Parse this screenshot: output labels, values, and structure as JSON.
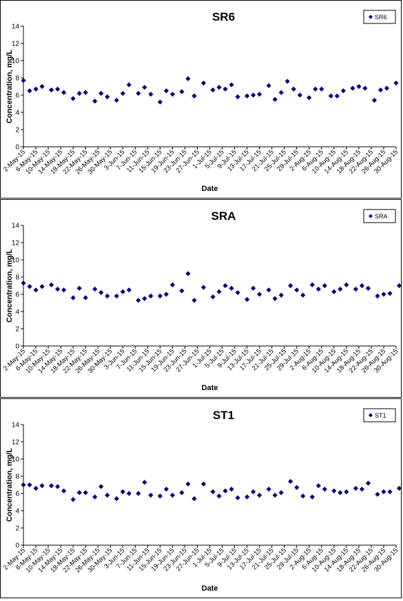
{
  "chart_data": [
    {
      "type": "scatter",
      "title": "SR6",
      "xlabel": "Date",
      "ylabel": "Concentration, mg/L",
      "ylim": [
        0,
        14
      ],
      "yticks": [
        0,
        2,
        4,
        6,
        8,
        10,
        12,
        14
      ],
      "xlim": [
        "2-May-15",
        "30-Aug-15"
      ],
      "xticks": [
        "2-May-15",
        "6-May-15",
        "10-May-15",
        "14-May-15",
        "18-May-15",
        "22-May-15",
        "26-May-15",
        "30-May-15",
        "3-Jun-15",
        "7-Jun-15",
        "11-Jun-15",
        "15-Jun-15",
        "19-Jun-15",
        "23-Jun-15",
        "27-Jun-15",
        "1-Jul-15",
        "5-Jul-15",
        "9-Jul-15",
        "13-Jul-15",
        "17-Jul-15",
        "21-Jul-15",
        "25-Jul-15",
        "29-Jul-15",
        "2-Aug-15",
        "6-Aug-15",
        "10-Aug-15",
        "14-Aug-15",
        "18-Aug-15",
        "22-Aug-15",
        "26-Aug-15",
        "30-Aug-15"
      ],
      "grid": false,
      "legend": "top-right",
      "marker_color": "#000080",
      "series": [
        {
          "name": "SR6",
          "x": [
            "2-May-15",
            "4-May-15",
            "6-May-15",
            "8-May-15",
            "11-May-15",
            "13-May-15",
            "15-May-15",
            "18-May-15",
            "20-May-15",
            "22-May-15",
            "25-May-15",
            "27-May-15",
            "29-May-15",
            "1-Jun-15",
            "3-Jun-15",
            "5-Jun-15",
            "8-Jun-15",
            "10-Jun-15",
            "12-Jun-15",
            "15-Jun-15",
            "17-Jun-15",
            "19-Jun-15",
            "22-Jun-15",
            "24-Jun-15",
            "26-Jun-15",
            "29-Jun-15",
            "2-Jul-15",
            "4-Jul-15",
            "6-Jul-15",
            "8-Jul-15",
            "10-Jul-15",
            "13-Jul-15",
            "15-Jul-15",
            "17-Jul-15",
            "20-Jul-15",
            "22-Jul-15",
            "24-Jul-15",
            "26-Jul-15",
            "28-Jul-15",
            "30-Jul-15",
            "2-Aug-15",
            "4-Aug-15",
            "6-Aug-15",
            "9-Aug-15",
            "11-Aug-15",
            "13-Aug-15",
            "16-Aug-15",
            "18-Aug-15",
            "20-Aug-15",
            "23-Aug-15",
            "25-Aug-15",
            "27-Aug-15",
            "30-Aug-15"
          ],
          "y": [
            7.7,
            6.5,
            6.7,
            7.0,
            6.6,
            6.7,
            6.3,
            5.6,
            6.2,
            6.3,
            5.3,
            6.2,
            5.8,
            5.4,
            6.2,
            7.2,
            6.2,
            6.9,
            6.1,
            5.2,
            6.5,
            6.1,
            6.4,
            7.9,
            5.9,
            7.4,
            6.6,
            6.9,
            6.7,
            7.2,
            5.8,
            5.9,
            6.0,
            6.1,
            7.1,
            5.5,
            6.3,
            7.6,
            6.7,
            6.0,
            5.7,
            6.7,
            6.7,
            5.9,
            5.9,
            6.5,
            6.8,
            7.0,
            6.8,
            5.4,
            6.6,
            6.8,
            7.4
          ]
        }
      ]
    },
    {
      "type": "scatter",
      "title": "SRA",
      "xlabel": "Date",
      "ylabel": "Concentration, mg/L",
      "ylim": [
        0,
        14
      ],
      "yticks": [
        0,
        2,
        4,
        6,
        8,
        10,
        12,
        14
      ],
      "xlim": [
        "2-May-15",
        "30-Aug-15"
      ],
      "xticks": [
        "2-May-15",
        "6-May-15",
        "10-May-15",
        "14-May-15",
        "18-May-15",
        "22-May-15",
        "26-May-15",
        "30-May-15",
        "3-Jun-15",
        "7-Jun-15",
        "11-Jun-15",
        "15-Jun-15",
        "19-Jun-15",
        "23-Jun-15",
        "27-Jun-15",
        "1-Jul-15",
        "5-Jul-15",
        "9-Jul-15",
        "13-Jul-15",
        "17-Jul-15",
        "21-Jul-15",
        "25-Jul-15",
        "29-Jul-15",
        "2-Aug-15",
        "6-Aug-15",
        "10-Aug-15",
        "14-Aug-15",
        "18-Aug-15",
        "22-Aug-15",
        "26-Aug-15",
        "30-Aug-15"
      ],
      "grid": false,
      "legend": "top-right",
      "marker_color": "#000080",
      "series": [
        {
          "name": "SRA",
          "x": [
            "2-May-15",
            "4-May-15",
            "6-May-15",
            "8-May-15",
            "11-May-15",
            "13-May-15",
            "15-May-15",
            "18-May-15",
            "20-May-15",
            "22-May-15",
            "25-May-15",
            "27-May-15",
            "29-May-15",
            "1-Jun-15",
            "3-Jun-15",
            "5-Jun-15",
            "8-Jun-15",
            "10-Jun-15",
            "12-Jun-15",
            "15-Jun-15",
            "17-Jun-15",
            "19-Jun-15",
            "22-Jun-15",
            "24-Jun-15",
            "26-Jun-15",
            "29-Jun-15",
            "2-Jul-15",
            "4-Jul-15",
            "6-Jul-15",
            "8-Jul-15",
            "10-Jul-15",
            "13-Jul-15",
            "15-Jul-15",
            "17-Jul-15",
            "20-Jul-15",
            "22-Jul-15",
            "24-Jul-15",
            "27-Jul-15",
            "29-Jul-15",
            "31-Jul-15",
            "3-Aug-15",
            "5-Aug-15",
            "7-Aug-15",
            "10-Aug-15",
            "12-Aug-15",
            "14-Aug-15",
            "17-Aug-15",
            "19-Aug-15",
            "21-Aug-15",
            "24-Aug-15",
            "26-Aug-15",
            "28-Aug-15",
            "31-Aug-15"
          ],
          "y": [
            7.3,
            6.9,
            6.5,
            6.9,
            7.1,
            6.6,
            6.5,
            5.6,
            6.7,
            5.6,
            6.6,
            6.2,
            5.8,
            5.8,
            6.3,
            6.5,
            5.3,
            5.5,
            5.8,
            5.8,
            6.0,
            7.1,
            6.4,
            8.4,
            5.3,
            6.8,
            5.7,
            6.3,
            7.0,
            6.7,
            6.2,
            5.4,
            6.7,
            6.0,
            6.5,
            5.5,
            5.9,
            7.0,
            6.5,
            5.9,
            7.1,
            6.6,
            7.0,
            6.3,
            6.6,
            7.1,
            6.6,
            7.0,
            6.7,
            5.8,
            6.0,
            6.1,
            7.0
          ]
        }
      ]
    },
    {
      "type": "scatter",
      "title": "ST1",
      "xlabel": "Date",
      "ylabel": "Concentration, mg/L",
      "ylim": [
        0,
        14
      ],
      "yticks": [
        0,
        2,
        4,
        6,
        8,
        10,
        12,
        14
      ],
      "xlim": [
        "2-May-15",
        "30-Aug-15"
      ],
      "xticks": [
        "2-May-15",
        "6-May-15",
        "10-May-15",
        "14-May-15",
        "18-May-15",
        "22-May-15",
        "26-May-15",
        "30-May-15",
        "3-Jun-15",
        "7-Jun-15",
        "11-Jun-15",
        "15-Jun-15",
        "19-Jun-15",
        "23-Jun-15",
        "27-Jun-15",
        "1-Jul-15",
        "5-Jul-15",
        "9-Jul-15",
        "13-Jul-15",
        "17-Jul-15",
        "21-Jul-15",
        "25-Jul-15",
        "29-Jul-15",
        "2-Aug-15",
        "6-Aug-15",
        "10-Aug-15",
        "14-Aug-15",
        "18-Aug-15",
        "22-Aug-15",
        "26-Aug-15",
        "30-Aug-15"
      ],
      "grid": false,
      "legend": "top-right",
      "marker_color": "#000080",
      "series": [
        {
          "name": "ST1",
          "x": [
            "2-May-15",
            "4-May-15",
            "6-May-15",
            "8-May-15",
            "11-May-15",
            "13-May-15",
            "15-May-15",
            "18-May-15",
            "20-May-15",
            "22-May-15",
            "25-May-15",
            "27-May-15",
            "29-May-15",
            "1-Jun-15",
            "3-Jun-15",
            "5-Jun-15",
            "8-Jun-15",
            "10-Jun-15",
            "12-Jun-15",
            "15-Jun-15",
            "17-Jun-15",
            "19-Jun-15",
            "22-Jun-15",
            "24-Jun-15",
            "26-Jun-15",
            "29-Jun-15",
            "2-Jul-15",
            "4-Jul-15",
            "6-Jul-15",
            "8-Jul-15",
            "10-Jul-15",
            "13-Jul-15",
            "15-Jul-15",
            "17-Jul-15",
            "20-Jul-15",
            "22-Jul-15",
            "24-Jul-15",
            "27-Jul-15",
            "29-Jul-15",
            "31-Jul-15",
            "3-Aug-15",
            "5-Aug-15",
            "7-Aug-15",
            "10-Aug-15",
            "12-Aug-15",
            "14-Aug-15",
            "17-Aug-15",
            "19-Aug-15",
            "21-Aug-15",
            "24-Aug-15",
            "26-Aug-15",
            "28-Aug-15",
            "31-Aug-15"
          ],
          "y": [
            7.0,
            7.0,
            6.6,
            6.9,
            6.9,
            6.8,
            6.3,
            5.3,
            6.1,
            6.1,
            5.6,
            6.8,
            5.8,
            5.4,
            6.2,
            6.0,
            6.0,
            7.3,
            5.8,
            5.7,
            6.5,
            5.8,
            6.1,
            7.1,
            5.4,
            7.1,
            6.2,
            5.7,
            6.3,
            6.5,
            5.5,
            5.6,
            6.2,
            5.8,
            6.5,
            5.8,
            6.1,
            7.4,
            6.7,
            5.7,
            5.6,
            6.9,
            6.5,
            6.3,
            6.1,
            6.2,
            6.6,
            6.5,
            7.2,
            5.9,
            6.2,
            6.2,
            6.6
          ]
        }
      ]
    }
  ]
}
